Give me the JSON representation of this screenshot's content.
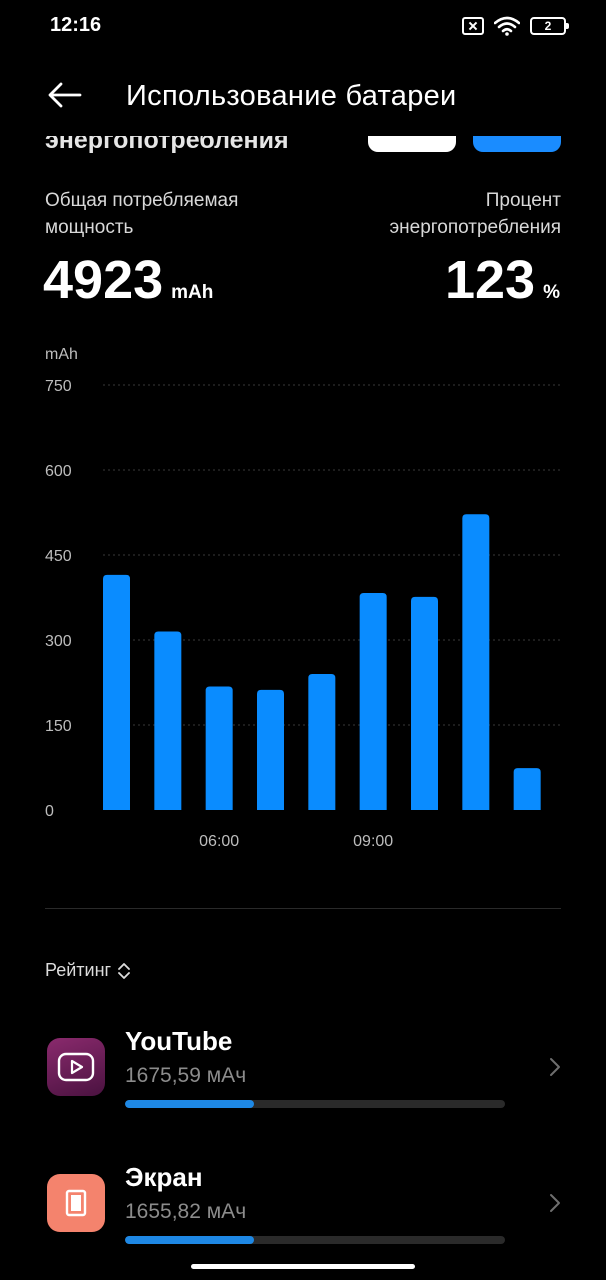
{
  "status_bar": {
    "time": "12:16",
    "battery_level": "2"
  },
  "header": {
    "title": "Использование батареи"
  },
  "partial_section": {
    "label": "энергопотребления"
  },
  "stats": {
    "total": {
      "label_line1": "Общая потребляемая",
      "label_line2": "мощность",
      "value": "4923",
      "unit": "mAh"
    },
    "percent": {
      "label_line1": "Процент",
      "label_line2": "энергопотребления",
      "value": "123",
      "unit": "%"
    }
  },
  "chart_data": {
    "type": "bar",
    "ylabel": "mAh",
    "ylim": [
      0,
      750
    ],
    "yticks": [
      "0",
      "150",
      "300",
      "450",
      "600",
      "750"
    ],
    "values": [
      415,
      315,
      218,
      212,
      240,
      383,
      376,
      522,
      74
    ],
    "xticks": [
      {
        "label": "06:00",
        "index": 2
      },
      {
        "label": "09:00",
        "index": 5
      }
    ],
    "bar_color": "#0a8cff",
    "grid": true
  },
  "sort": {
    "label": "Рейтинг"
  },
  "apps": [
    {
      "name": "YouTube",
      "usage": "1675,59 мАч",
      "fill_fraction": 0.34,
      "icon_color": "#6b1e57"
    },
    {
      "name": "Экран",
      "usage": "1655,82 мАч",
      "fill_fraction": 0.34,
      "icon_color": "#f4836d"
    }
  ]
}
